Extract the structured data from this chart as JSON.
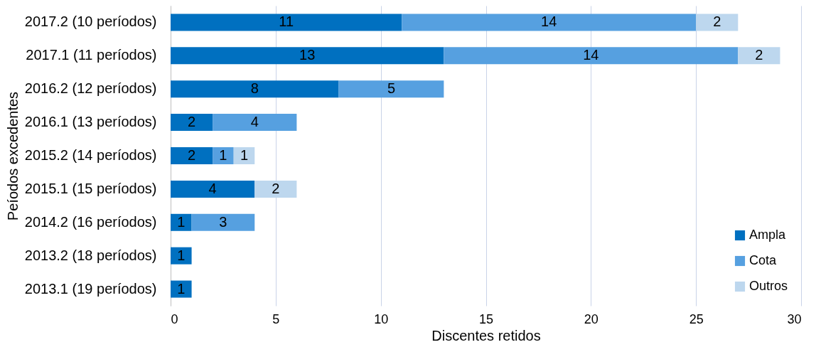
{
  "chart_data": {
    "type": "bar",
    "orientation": "horizontal",
    "stacked": true,
    "xlabel": "Discentes retidos",
    "ylabel": "Peíodos excedentes",
    "categories": [
      "2017.2 (10 períodos)",
      "2017.1 (11 períodos)",
      "2016.2 (12 períodos)",
      "2016.1 (13 períodos)",
      "2015.2 (14 períodos)",
      "2015.1 (15 períodos)",
      "2014.2 (16 períodos)",
      "2013.2 (18 períodos)",
      "2013.1 (19 períodos)"
    ],
    "series": [
      {
        "name": "Ampla",
        "color": "#0070c0",
        "values": [
          11,
          13,
          8,
          2,
          2,
          4,
          1,
          1,
          1
        ]
      },
      {
        "name": "Cota",
        "color": "#56a0e0",
        "values": [
          14,
          14,
          5,
          4,
          1,
          null,
          3,
          null,
          null
        ]
      },
      {
        "name": "Outros",
        "color": "#bdd7ee",
        "values": [
          2,
          2,
          null,
          null,
          1,
          2,
          null,
          null,
          null
        ]
      }
    ],
    "xlim": [
      0,
      30
    ],
    "xticks": [
      0,
      5,
      10,
      15,
      20,
      25,
      30
    ],
    "grid": "x",
    "legend": "bottom right",
    "data_labels": true
  }
}
